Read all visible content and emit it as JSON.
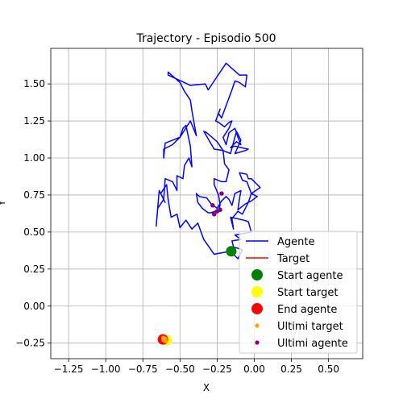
{
  "chart_data": {
    "type": "scatter",
    "title": "Trajectory - Episodio 500",
    "xlabel": "X",
    "ylabel": "Y",
    "xlim": [
      -1.37,
      0.73
    ],
    "ylim": [
      -0.355,
      1.74
    ],
    "grid": true,
    "legend_position": "lower right",
    "xticks": [
      -1.25,
      -1.0,
      -0.75,
      -0.5,
      -0.25,
      0.0,
      0.25,
      0.5
    ],
    "xtick_labels": [
      "−1.25",
      "−1.00",
      "−0.75",
      "−0.50",
      "−0.25",
      "0.00",
      "0.25",
      "0.50"
    ],
    "yticks": [
      -0.25,
      0.0,
      0.25,
      0.5,
      0.75,
      1.0,
      1.25,
      1.5
    ],
    "ytick_labels": [
      "−0.25",
      "0.00",
      "0.25",
      "0.50",
      "0.75",
      "1.00",
      "1.25",
      "1.50"
    ],
    "colors": {
      "agente": "#0000ff",
      "target": "#ff0000",
      "start_agente": "#008000",
      "start_target": "#ffff00",
      "end_agente": "#ff0000",
      "ultimi_target": "#ffa500",
      "ultimi_agente": "#800080"
    },
    "series": [
      {
        "name": "Agente",
        "kind": "line",
        "points": [
          [
            -0.16,
            0.37
          ],
          [
            -0.27,
            0.35
          ],
          [
            -0.34,
            0.45
          ],
          [
            -0.38,
            0.56
          ],
          [
            -0.42,
            0.52
          ],
          [
            -0.46,
            0.58
          ],
          [
            -0.5,
            0.53
          ],
          [
            -0.52,
            0.62
          ],
          [
            -0.56,
            0.6
          ],
          [
            -0.58,
            0.72
          ],
          [
            -0.59,
            0.82
          ],
          [
            -0.63,
            0.76
          ],
          [
            -0.6,
            0.7
          ],
          [
            -0.64,
            0.78
          ],
          [
            -0.66,
            0.54
          ],
          [
            -0.65,
            0.66
          ],
          [
            -0.61,
            0.72
          ],
          [
            -0.6,
            0.86
          ],
          [
            -0.55,
            0.84
          ],
          [
            -0.52,
            0.78
          ],
          [
            -0.52,
            0.88
          ],
          [
            -0.48,
            0.86
          ],
          [
            -0.47,
            0.95
          ],
          [
            -0.44,
            1.0
          ],
          [
            -0.42,
            0.94
          ],
          [
            -0.43,
            1.08
          ],
          [
            -0.46,
            1.22
          ],
          [
            -0.48,
            1.2
          ],
          [
            -0.5,
            1.14
          ],
          [
            -0.52,
            1.12
          ],
          [
            -0.55,
            1.09
          ],
          [
            -0.61,
            1.06
          ],
          [
            -0.61,
            1.0
          ],
          [
            -0.6,
            1.1
          ],
          [
            -0.5,
            1.14
          ],
          [
            -0.43,
            1.25
          ],
          [
            -0.39,
            1.15
          ],
          [
            -0.42,
            1.32
          ],
          [
            -0.43,
            1.39
          ],
          [
            -0.47,
            1.45
          ],
          [
            -0.5,
            1.51
          ],
          [
            -0.58,
            1.58
          ],
          [
            -0.58,
            1.56
          ],
          [
            -0.43,
            1.49
          ],
          [
            -0.33,
            1.5
          ],
          [
            -0.31,
            1.46
          ],
          [
            -0.19,
            1.64
          ],
          [
            -0.1,
            1.56
          ],
          [
            -0.05,
            1.56
          ],
          [
            -0.06,
            1.48
          ],
          [
            -0.1,
            1.51
          ],
          [
            -0.13,
            1.52
          ],
          [
            -0.15,
            1.46
          ],
          [
            -0.18,
            1.38
          ],
          [
            -0.22,
            1.27
          ],
          [
            -0.24,
            1.3
          ],
          [
            -0.23,
            1.33
          ],
          [
            -0.26,
            1.25
          ],
          [
            -0.24,
            1.24
          ],
          [
            -0.2,
            1.21
          ],
          [
            -0.17,
            1.24
          ],
          [
            -0.15,
            1.25
          ],
          [
            -0.17,
            1.2
          ],
          [
            -0.21,
            1.14
          ],
          [
            -0.19,
            1.09
          ],
          [
            -0.17,
            1.17
          ],
          [
            -0.13,
            1.2
          ],
          [
            -0.11,
            1.14
          ],
          [
            -0.09,
            1.09
          ],
          [
            -0.12,
            1.11
          ],
          [
            -0.16,
            1.07
          ],
          [
            -0.13,
            1.08
          ],
          [
            -0.09,
            1.07
          ],
          [
            -0.04,
            1.06
          ],
          [
            -0.06,
            1.05
          ],
          [
            -0.13,
            1.03
          ],
          [
            -0.09,
            1.12
          ],
          [
            -0.12,
            1.18
          ],
          [
            -0.16,
            1.03
          ],
          [
            -0.21,
            1.05
          ],
          [
            -0.25,
            1.11
          ],
          [
            -0.32,
            1.17
          ],
          [
            -0.34,
            1.18
          ],
          [
            -0.27,
            1.06
          ],
          [
            -0.21,
            1.05
          ],
          [
            -0.2,
            0.96
          ],
          [
            -0.17,
            0.92
          ],
          [
            -0.19,
            0.84
          ],
          [
            -0.22,
            0.84
          ],
          [
            -0.27,
            0.86
          ],
          [
            -0.27,
            0.82
          ],
          [
            -0.24,
            0.75
          ],
          [
            -0.23,
            0.68
          ],
          [
            -0.24,
            0.65
          ],
          [
            -0.29,
            0.63
          ],
          [
            -0.31,
            0.63
          ],
          [
            -0.35,
            0.66
          ],
          [
            -0.38,
            0.7
          ],
          [
            -0.39,
            0.76
          ],
          [
            -0.37,
            0.74
          ],
          [
            -0.32,
            0.73
          ],
          [
            -0.29,
            0.69
          ],
          [
            -0.25,
            0.66
          ],
          [
            -0.22,
            0.71
          ],
          [
            -0.19,
            0.74
          ],
          [
            -0.17,
            0.72
          ],
          [
            -0.15,
            0.68
          ],
          [
            -0.13,
            0.76
          ],
          [
            -0.09,
            0.78
          ],
          [
            -0.1,
            0.72
          ],
          [
            -0.11,
            0.65
          ],
          [
            -0.06,
            0.69
          ],
          [
            -0.02,
            0.71
          ],
          [
            0.02,
            0.74
          ],
          [
            -0.02,
            0.76
          ],
          [
            -0.05,
            0.84
          ],
          [
            -0.08,
            0.85
          ],
          [
            -0.1,
            0.9
          ],
          [
            -0.05,
            0.89
          ],
          [
            -0.04,
            0.86
          ],
          [
            -0.02,
            0.86
          ],
          [
            0.04,
            0.8
          ],
          [
            -0.02,
            0.76
          ],
          [
            -0.04,
            0.7
          ],
          [
            -0.08,
            0.62
          ],
          [
            -0.11,
            0.64
          ],
          [
            -0.15,
            0.59
          ],
          [
            -0.14,
            0.52
          ],
          [
            -0.16,
            0.6
          ],
          [
            -0.07,
            0.58
          ],
          [
            -0.04,
            0.57
          ],
          [
            -0.02,
            0.5
          ],
          [
            -0.13,
            0.48
          ],
          [
            -0.09,
            0.45
          ],
          [
            -0.15,
            0.44
          ],
          [
            -0.14,
            0.4
          ],
          [
            -0.08,
            0.38
          ],
          [
            -0.11,
            0.32
          ],
          [
            -0.16,
            0.37
          ]
        ]
      },
      {
        "name": "Target",
        "kind": "line",
        "points": [
          [
            -0.6,
            -0.23
          ],
          [
            -0.61,
            -0.22
          ],
          [
            -0.62,
            -0.23
          ],
          [
            -0.61,
            -0.24
          ],
          [
            -0.6,
            -0.23
          ]
        ]
      },
      {
        "name": "Start agente",
        "kind": "marker",
        "size": 11,
        "points": [
          [
            -0.155,
            0.37
          ]
        ]
      },
      {
        "name": "Start target",
        "kind": "marker",
        "size": 11,
        "points": [
          [
            -0.59,
            -0.23
          ]
        ]
      },
      {
        "name": "End agente",
        "kind": "marker",
        "size": 11,
        "points": [
          [
            -0.615,
            -0.225
          ]
        ]
      },
      {
        "name": "Ultimi target",
        "kind": "marker",
        "size": 3.5,
        "points": [
          [
            -0.6,
            -0.22
          ],
          [
            -0.605,
            -0.225
          ],
          [
            -0.61,
            -0.23
          ],
          [
            -0.598,
            -0.235
          ],
          [
            -0.612,
            -0.215
          ]
        ]
      },
      {
        "name": "Ultimi agente",
        "kind": "marker",
        "size": 3.5,
        "points": [
          [
            -0.28,
            0.68
          ],
          [
            -0.27,
            0.62
          ],
          [
            -0.23,
            0.65
          ],
          [
            -0.22,
            0.76
          ],
          [
            -0.25,
            0.64
          ]
        ]
      }
    ]
  }
}
